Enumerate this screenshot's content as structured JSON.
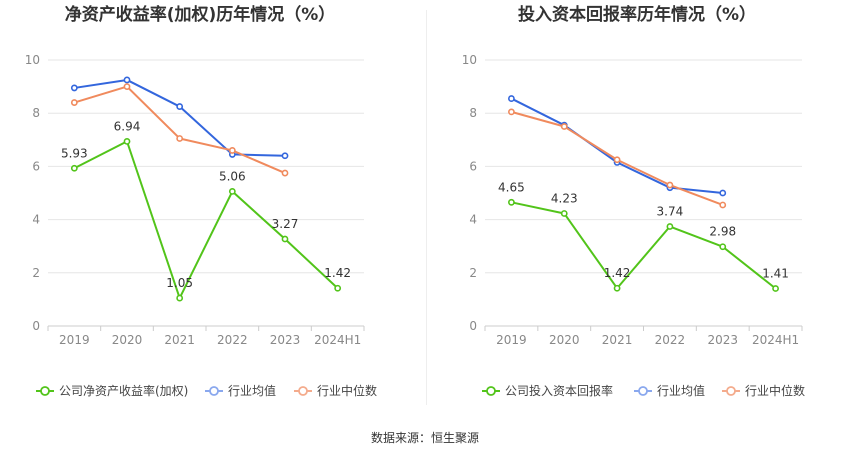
{
  "colors": {
    "company": "#52c41a",
    "industry_avg": "#3366dd",
    "industry_median": "#f08a5d",
    "legend_avg": "#8aa8ee",
    "legend_median": "#f4ab8c",
    "grid": "#e6e6e6",
    "axis_text": "#888888",
    "title": "#333333"
  },
  "source": "数据来源：恒生聚源",
  "chart_data": [
    {
      "type": "line",
      "title": "净资产收益率(加权)历年情况（%）",
      "categories": [
        "2019",
        "2020",
        "2021",
        "2022",
        "2023",
        "2024H1"
      ],
      "ylim": [
        0,
        10
      ],
      "yticks": [
        "0",
        "2",
        "4",
        "6",
        "8",
        "10"
      ],
      "grid": true,
      "legend_position": "bottom",
      "series": [
        {
          "name": "公司净资产收益率(加权)",
          "key": "company",
          "values": [
            5.93,
            6.94,
            1.05,
            5.06,
            3.27,
            1.42
          ],
          "labels": [
            "5.93",
            "6.94",
            "1.05",
            "5.06",
            "3.27",
            "1.42"
          ]
        },
        {
          "name": "行业均值",
          "key": "industry_avg",
          "values": [
            8.95,
            9.25,
            8.25,
            6.45,
            6.4,
            null
          ]
        },
        {
          "name": "行业中位数",
          "key": "industry_median",
          "values": [
            8.4,
            9.0,
            7.05,
            6.6,
            5.75,
            null
          ]
        }
      ]
    },
    {
      "type": "line",
      "title": "投入资本回报率历年情况（%）",
      "categories": [
        "2019",
        "2020",
        "2021",
        "2022",
        "2023",
        "2024H1"
      ],
      "ylim": [
        0,
        10
      ],
      "yticks": [
        "0",
        "2",
        "4",
        "6",
        "8",
        "10"
      ],
      "grid": true,
      "legend_position": "bottom",
      "series": [
        {
          "name": "公司投入资本回报率",
          "key": "company",
          "values": [
            4.65,
            4.23,
            1.42,
            3.74,
            2.98,
            1.41
          ],
          "labels": [
            "4.65",
            "4.23",
            "1.42",
            "3.74",
            "2.98",
            "1.41"
          ]
        },
        {
          "name": "行业均值",
          "key": "industry_avg",
          "values": [
            8.55,
            7.55,
            6.15,
            5.2,
            5.0,
            null
          ]
        },
        {
          "name": "行业中位数",
          "key": "industry_median",
          "values": [
            8.05,
            7.5,
            6.25,
            5.3,
            4.55,
            null
          ]
        }
      ]
    }
  ]
}
